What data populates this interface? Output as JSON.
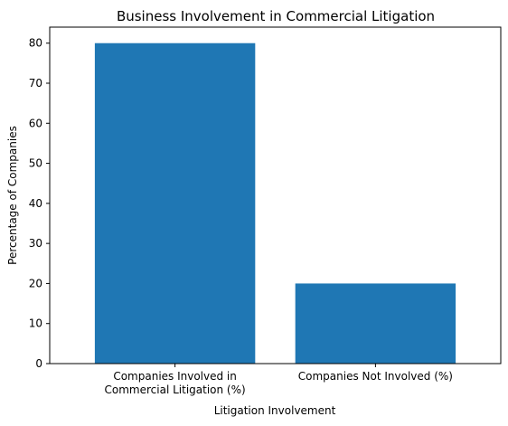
{
  "chart_data": {
    "type": "bar",
    "title": "Business Involvement in Commercial Litigation",
    "xlabel": "Litigation Involvement",
    "ylabel": "Percentage of Companies",
    "categories": [
      [
        "Companies Involved in",
        "Commercial Litigation (%)"
      ],
      [
        "Companies Not Involved (%)"
      ]
    ],
    "values": [
      80,
      20
    ],
    "ylim": [
      0,
      84
    ],
    "yticks": [
      0,
      10,
      20,
      30,
      40,
      50,
      60,
      70,
      80
    ],
    "bar_color": "#1f77b4",
    "grid": false,
    "legend": "none"
  }
}
